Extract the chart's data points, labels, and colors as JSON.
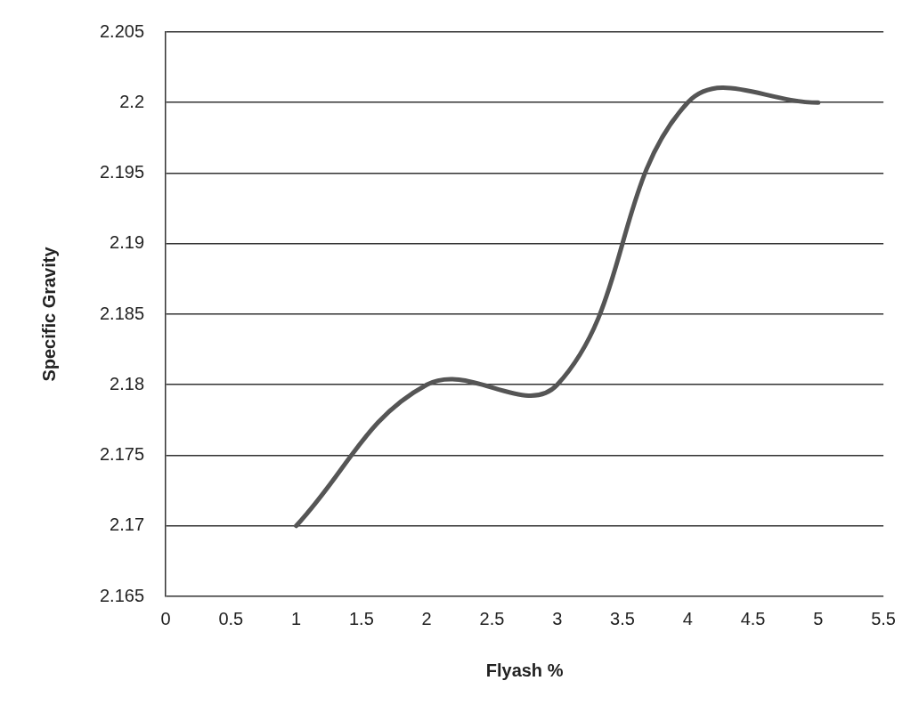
{
  "chart_data": {
    "type": "line",
    "xlabel": "Flyash %",
    "ylabel": "Specific Gravity",
    "x": [
      1,
      2,
      3,
      4,
      5
    ],
    "series": [
      {
        "color": "#555555",
        "values": [
          2.17,
          2.18,
          2.18,
          2.2,
          2.2
        ]
      }
    ],
    "xlim": [
      0,
      5.5
    ],
    "xticks": [
      0,
      0.5,
      1,
      1.5,
      2,
      2.5,
      3,
      3.5,
      4,
      4.5,
      5,
      5.5
    ],
    "ylim": [
      2.165,
      2.205
    ],
    "yticks": [
      2.165,
      2.17,
      2.175,
      2.18,
      2.185,
      2.19,
      2.195,
      2.2,
      2.205
    ],
    "grid": "y",
    "legend": false,
    "marker": "none",
    "line_style": "solid"
  }
}
